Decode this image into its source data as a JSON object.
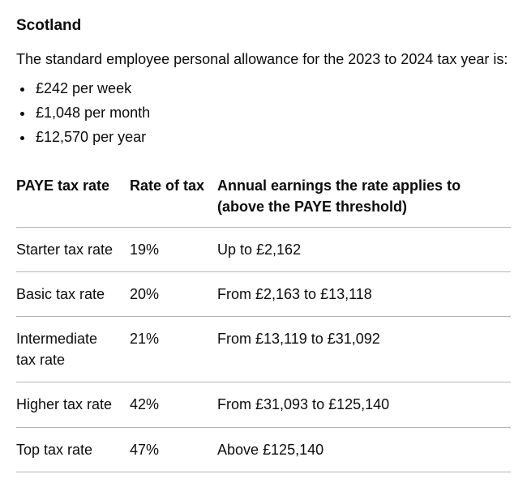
{
  "heading": "Scotland",
  "intro": "The standard employee personal allowance for the 2023 to 2024 tax year is:",
  "allowance_items": [
    "£242 per week",
    "£1,048 per month",
    "£12,570 per year"
  ],
  "table": {
    "columns": [
      "PAYE tax rate",
      "Rate of tax",
      "Annual earnings the rate applies to (above the PAYE threshold)"
    ],
    "rows": [
      [
        "Starter tax rate",
        "19%",
        "Up to £2,162"
      ],
      [
        "Basic tax rate",
        "20%",
        "From £2,163 to £13,118"
      ],
      [
        "Intermediate tax rate",
        "21%",
        "From £13,119 to £31,092"
      ],
      [
        "Higher tax rate",
        "42%",
        "From £31,093 to £125,140"
      ],
      [
        "Top tax rate",
        "47%",
        "Above £125,140"
      ]
    ]
  }
}
